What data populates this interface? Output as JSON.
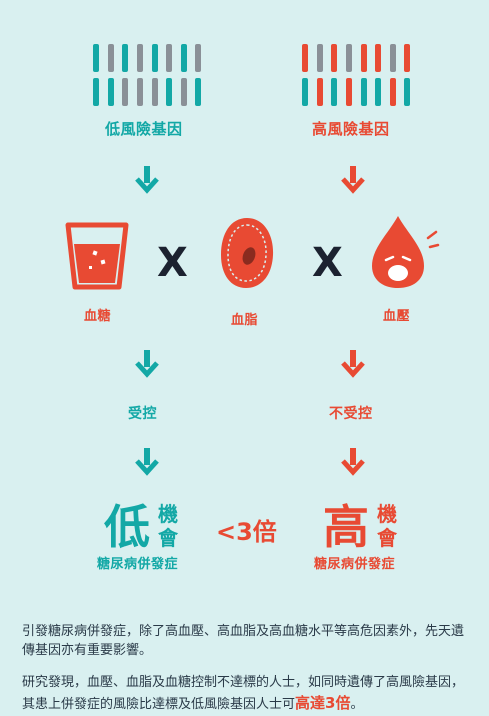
{
  "colors": {
    "background": "#d9f0f0",
    "teal": "#13a8a6",
    "red": "#e84a33",
    "gray": "#8a9097",
    "dark": "#1c2230"
  },
  "genes": {
    "low": {
      "label": "低風險基因",
      "top_row": [
        "teal",
        "gray",
        "teal",
        "gray",
        "teal",
        "gray",
        "teal",
        "gray"
      ],
      "bottom_row": [
        "teal",
        "teal",
        "gray",
        "gray",
        "gray",
        "teal",
        "gray",
        "teal"
      ]
    },
    "high": {
      "label": "高風險基因",
      "top_row": [
        "red",
        "gray",
        "red",
        "gray",
        "red",
        "red",
        "gray",
        "red"
      ],
      "bottom_row": [
        "teal",
        "red",
        "teal",
        "red",
        "teal",
        "teal",
        "red",
        "teal"
      ]
    }
  },
  "icons": {
    "sugar": {
      "label": "血糖",
      "icon": "cup-icon"
    },
    "lipid": {
      "label": "血脂",
      "icon": "blood-cell-icon"
    },
    "pressure": {
      "label": "血壓",
      "icon": "blood-drop-icon"
    },
    "times": "X"
  },
  "control": {
    "controlled": "受控",
    "uncontrolled": "不受控"
  },
  "outcome": {
    "low_char": "低",
    "high_char": "高",
    "chance_top": "機",
    "chance_bottom": "會",
    "low_caption": "糖尿病併發症",
    "high_caption": "糖尿病併發症",
    "compare": "<3倍"
  },
  "text": {
    "p1": "引發糖尿病併發症，除了高血壓、高血脂及高血糖水平等高危因素外，先天遺傳基因亦有重要影響。",
    "p2_pre": "研究發現，血壓、血脂及血糖控制不達標的人士，如同時遺傳了高風險基因，其患上併發症的風險比達標及低風險基因人士可",
    "p2_highlight": "高達3倍",
    "p2_post": "。"
  }
}
